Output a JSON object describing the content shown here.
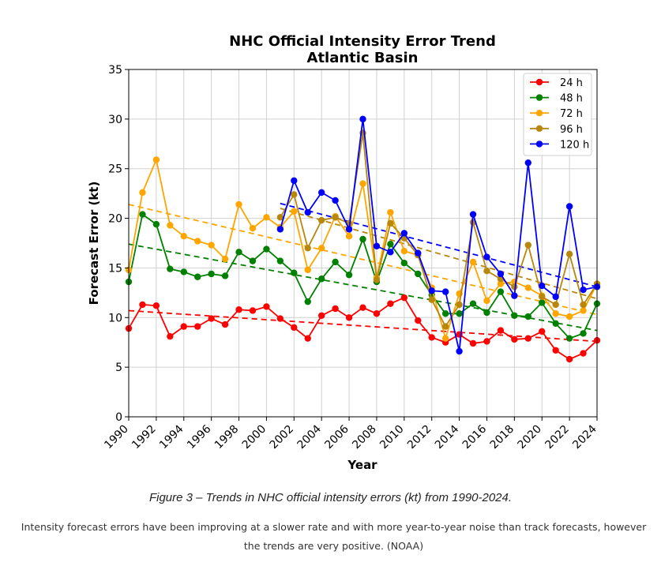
{
  "chart_data": {
    "type": "line",
    "title": "NHC Official Intensity Error Trend",
    "subtitle": "Atlantic Basin",
    "xlabel": "Year",
    "ylabel": "Forecast Error (kt)",
    "xlim": [
      1990,
      2024
    ],
    "ylim": [
      0,
      35
    ],
    "x_ticks": [
      1990,
      1992,
      1994,
      1996,
      1998,
      2000,
      2002,
      2004,
      2006,
      2008,
      2010,
      2012,
      2014,
      2016,
      2018,
      2020,
      2022,
      2024
    ],
    "y_ticks": [
      0,
      5,
      10,
      15,
      20,
      25,
      30,
      35
    ],
    "grid": true,
    "legend_position": "top-right",
    "series": [
      {
        "name": "24 h",
        "color": "#ff0000",
        "x": [
          1990,
          1991,
          1992,
          1993,
          1994,
          1995,
          1996,
          1997,
          1998,
          1999,
          2000,
          2001,
          2002,
          2003,
          2004,
          2005,
          2006,
          2007,
          2008,
          2009,
          2010,
          2011,
          2012,
          2013,
          2014,
          2015,
          2016,
          2017,
          2018,
          2019,
          2020,
          2021,
          2022,
          2023,
          2024
        ],
        "values": [
          8.9,
          11.3,
          11.2,
          8.1,
          9.1,
          9.1,
          9.9,
          9.3,
          10.8,
          10.7,
          11.1,
          9.9,
          9.0,
          7.9,
          10.2,
          10.9,
          10.0,
          11.0,
          10.4,
          11.4,
          12.0,
          9.7,
          8.0,
          7.5,
          8.3,
          7.4,
          7.6,
          8.7,
          7.8,
          7.9,
          8.6,
          6.7,
          5.8,
          6.4,
          7.7
        ],
        "trend": [
          10.7,
          7.6
        ]
      },
      {
        "name": "48 h",
        "color": "#008000",
        "x": [
          1990,
          1991,
          1992,
          1993,
          1994,
          1995,
          1996,
          1997,
          1998,
          1999,
          2000,
          2001,
          2002,
          2003,
          2004,
          2005,
          2006,
          2007,
          2008,
          2009,
          2010,
          2011,
          2012,
          2013,
          2014,
          2015,
          2016,
          2017,
          2018,
          2019,
          2020,
          2021,
          2022,
          2023,
          2024
        ],
        "values": [
          13.6,
          20.4,
          19.4,
          14.9,
          14.6,
          14.1,
          14.4,
          14.2,
          16.6,
          15.7,
          16.9,
          15.7,
          14.5,
          11.6,
          13.9,
          15.6,
          14.3,
          17.9,
          13.6,
          17.4,
          15.5,
          14.4,
          12.3,
          10.4,
          10.4,
          11.4,
          10.5,
          12.6,
          10.2,
          10.1,
          11.5,
          9.4,
          7.9,
          8.4,
          11.4
        ],
        "trend": [
          17.4,
          8.7
        ]
      },
      {
        "name": "72 h",
        "color": "#ffa500",
        "x": [
          1990,
          1991,
          1992,
          1993,
          1994,
          1995,
          1996,
          1997,
          1998,
          1999,
          2000,
          2001,
          2002,
          2003,
          2004,
          2005,
          2006,
          2007,
          2008,
          2009,
          2010,
          2011,
          2012,
          2013,
          2014,
          2015,
          2016,
          2017,
          2018,
          2019,
          2020,
          2021,
          2022,
          2023,
          2024
        ],
        "values": [
          14.8,
          22.6,
          25.9,
          19.3,
          18.2,
          17.7,
          17.3,
          15.9,
          21.4,
          19.0,
          20.1,
          19.1,
          20.7,
          14.8,
          17.0,
          20.2,
          18.2,
          23.5,
          14.0,
          20.6,
          16.7,
          16.3,
          13.0,
          7.9,
          12.4,
          15.6,
          11.7,
          13.4,
          13.6,
          13.0,
          12.2,
          10.4,
          10.1,
          10.7,
          13.4
        ],
        "trend": [
          21.4,
          10.3
        ]
      },
      {
        "name": "96 h",
        "color": "#b8860b",
        "x": [
          2001,
          2002,
          2003,
          2004,
          2005,
          2006,
          2007,
          2008,
          2009,
          2010,
          2011,
          2012,
          2013,
          2014,
          2015,
          2016,
          2017,
          2018,
          2019,
          2020,
          2021,
          2022,
          2023,
          2024
        ],
        "values": [
          20.1,
          22.4,
          17.0,
          19.8,
          20.1,
          19.5,
          28.6,
          13.8,
          19.5,
          18.0,
          16.3,
          11.8,
          9.1,
          11.3,
          19.6,
          14.7,
          13.9,
          13.1,
          17.3,
          12.1,
          11.3,
          16.4,
          11.3,
          13.4
        ],
        "trend": [
          21.0,
          11.9
        ]
      },
      {
        "name": "120 h",
        "color": "#0000ff",
        "x": [
          2001,
          2002,
          2003,
          2004,
          2005,
          2006,
          2007,
          2008,
          2009,
          2010,
          2011,
          2012,
          2013,
          2014,
          2015,
          2016,
          2017,
          2018,
          2019,
          2020,
          2021,
          2022,
          2023,
          2024
        ],
        "values": [
          18.9,
          23.8,
          20.6,
          22.6,
          21.8,
          18.9,
          30.0,
          17.2,
          16.6,
          18.5,
          16.5,
          12.7,
          12.6,
          6.6,
          20.4,
          16.1,
          14.4,
          12.2,
          25.6,
          13.2,
          12.1,
          21.2,
          12.8,
          13.1
        ],
        "trend": [
          21.5,
          13.1
        ]
      }
    ]
  },
  "caption": "Figure 3 – Trends in NHC official intensity errors (kt) from 1990-2024.",
  "note": "Intensity forecast errors have been improving at a slower rate and with more year-to-year noise than track forecasts, however the trends are very positive. (NOAA)"
}
